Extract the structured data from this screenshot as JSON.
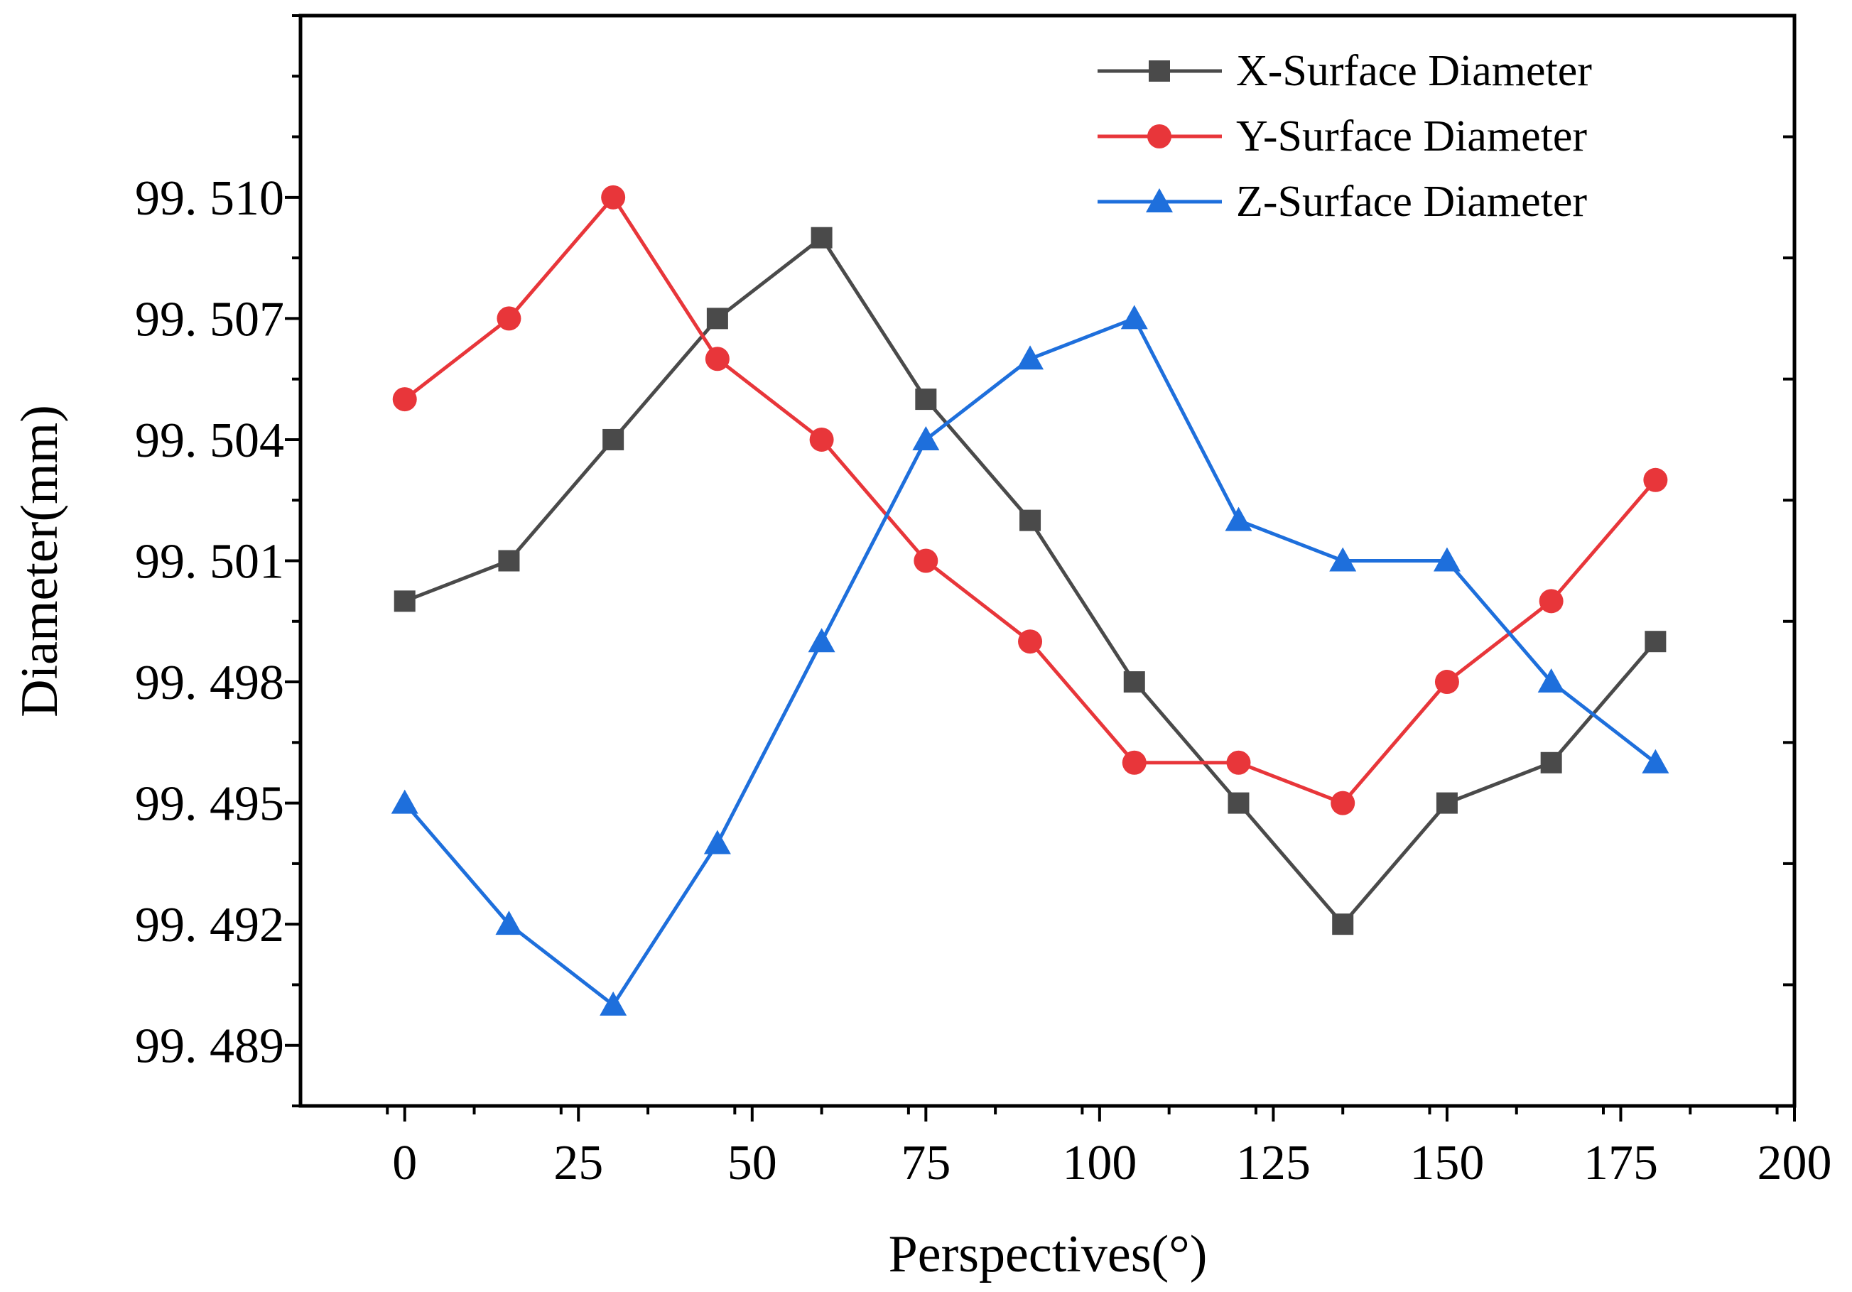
{
  "chart_data": {
    "type": "line",
    "xlabel": "Perspectives(°)",
    "ylabel": "Diameter(mm)",
    "xlim": [
      -15,
      200
    ],
    "ylim": [
      99.4875,
      99.5145
    ],
    "x_ticks": [
      0,
      25,
      50,
      75,
      100,
      125,
      150,
      175,
      200
    ],
    "x_tick_labels": [
      "0",
      "25",
      "50",
      "75",
      "100",
      "125",
      "150",
      "175",
      "200"
    ],
    "y_ticks": [
      99.489,
      99.492,
      99.495,
      99.498,
      99.501,
      99.504,
      99.507,
      99.51
    ],
    "y_tick_labels": [
      "99. 489",
      "99. 492",
      "99. 495",
      "99. 498",
      "99. 501",
      "99. 504",
      "99. 507",
      "99. 510"
    ],
    "x": [
      0,
      15,
      30,
      45,
      60,
      75,
      90,
      105,
      120,
      135,
      150,
      165,
      180
    ],
    "series": [
      {
        "name": "X-Surface Diameter",
        "color": "#4a4a4a",
        "marker": "square",
        "values": [
          99.5,
          99.501,
          99.504,
          99.507,
          99.509,
          99.505,
          99.502,
          99.498,
          99.495,
          99.492,
          99.495,
          99.496,
          99.499
        ]
      },
      {
        "name": "Y-Surface Diameter",
        "color": "#e8363a",
        "marker": "circle",
        "values": [
          99.505,
          99.507,
          99.51,
          99.506,
          99.504,
          99.501,
          99.499,
          99.496,
          99.496,
          99.495,
          99.498,
          99.5,
          99.503
        ]
      },
      {
        "name": "Z-Surface Diameter",
        "color": "#1e6fdc",
        "marker": "triangle",
        "values": [
          99.495,
          99.492,
          99.49,
          99.494,
          99.499,
          99.504,
          99.506,
          99.507,
          99.502,
          99.501,
          99.501,
          99.498,
          99.496
        ]
      }
    ],
    "legend_position": "top-right",
    "grid": false
  }
}
